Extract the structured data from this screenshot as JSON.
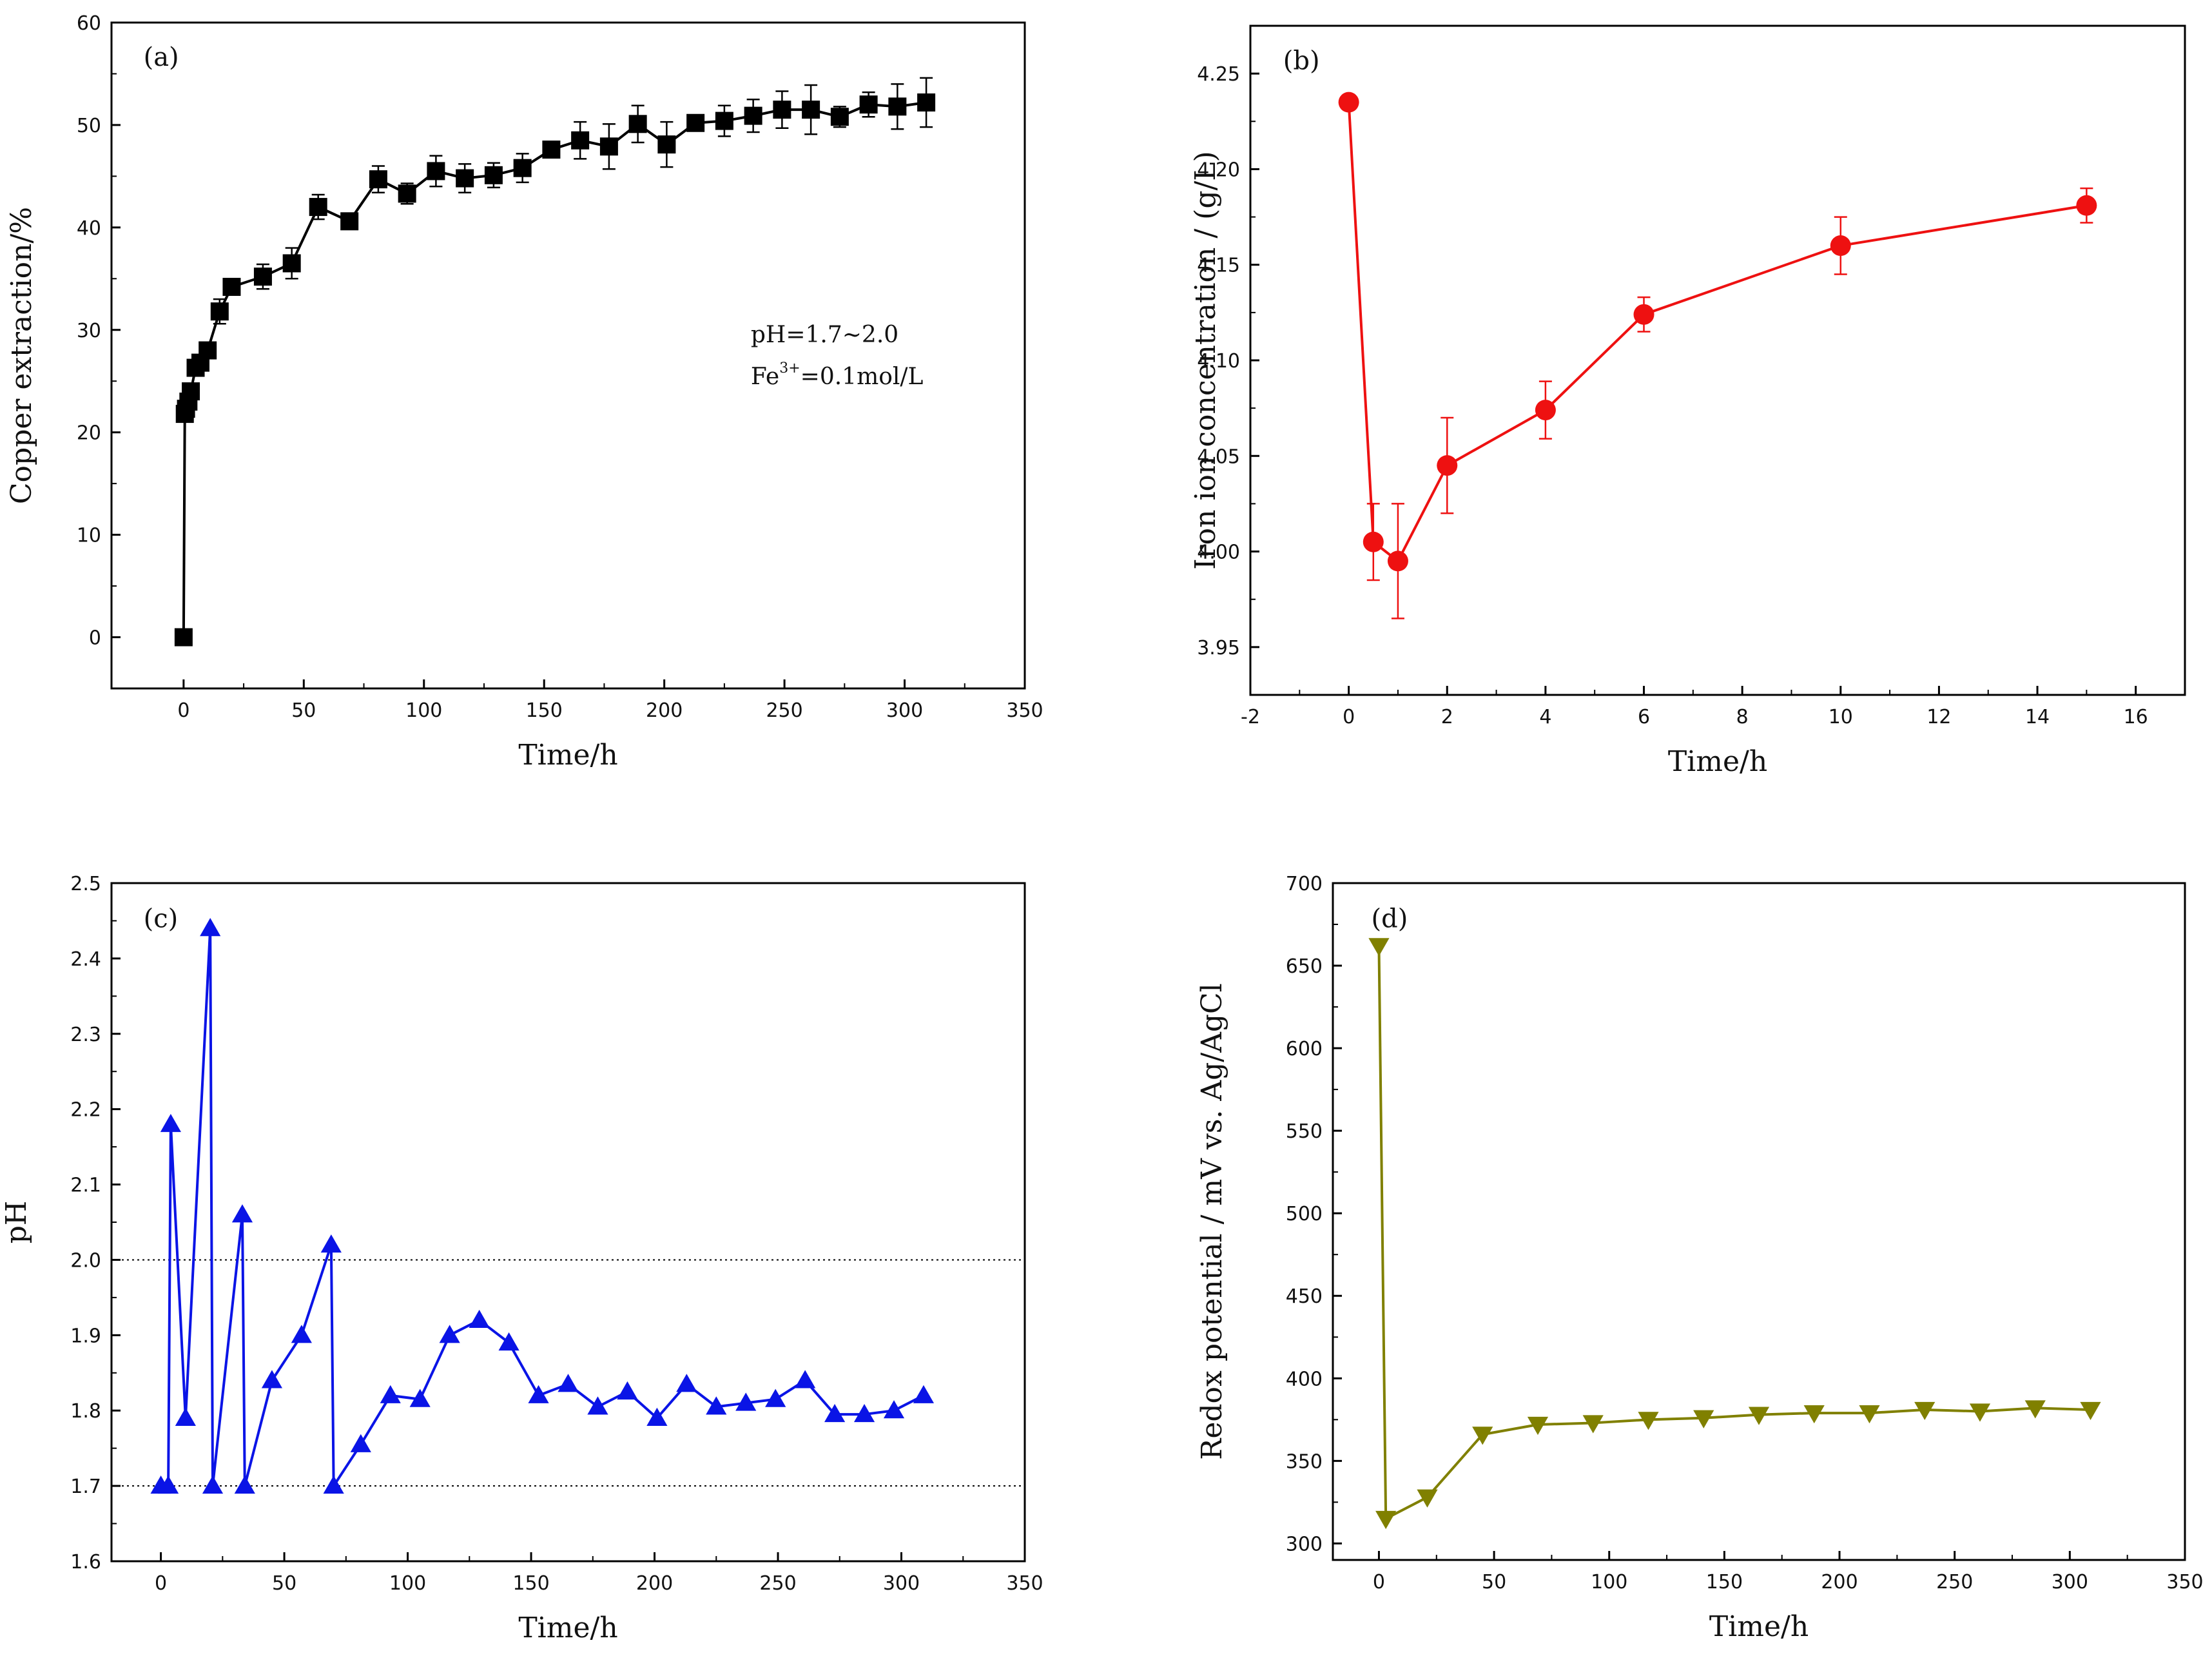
{
  "chart_data": [
    {
      "id": "a",
      "type": "line",
      "panel_label": "(a)",
      "xlabel": "Time/h",
      "ylabel": "Copper extraction/%",
      "xlim": [
        -30,
        350
      ],
      "ylim": [
        -5,
        60
      ],
      "xticks": [
        0,
        50,
        100,
        150,
        200,
        250,
        300,
        350
      ],
      "yticks": [
        0,
        10,
        20,
        30,
        40,
        50,
        60
      ],
      "marker": "square",
      "color": "#000000",
      "annotations": [
        {
          "text": "pH=1.7~2.0"
        },
        {
          "text": "Fe",
          "sup": "3+",
          "rest": "=0.1mol/L"
        }
      ],
      "series": [
        {
          "name": "Copper extraction",
          "x": [
            0,
            0.5,
            1,
            2,
            3,
            5,
            7,
            10,
            15,
            20,
            33,
            45,
            56,
            69,
            81,
            93,
            105,
            117,
            129,
            141,
            153,
            165,
            177,
            189,
            201,
            213,
            225,
            237,
            249,
            261,
            273,
            285,
            297,
            309
          ],
          "y": [
            0,
            21.8,
            22.3,
            23.0,
            24.0,
            26.3,
            26.8,
            28.0,
            31.8,
            34.2,
            35.2,
            36.5,
            42.0,
            40.6,
            44.7,
            43.3,
            45.5,
            44.8,
            45.1,
            45.8,
            47.6,
            48.5,
            47.9,
            50.1,
            48.1,
            50.2,
            50.4,
            50.9,
            51.5,
            51.5,
            50.8,
            52.0,
            51.8,
            52.2
          ],
          "err": [
            0,
            0,
            0,
            0,
            0,
            0.5,
            0.5,
            0.4,
            1.2,
            0.5,
            1.2,
            1.5,
            1.2,
            0,
            1.3,
            1.0,
            1.5,
            1.4,
            1.2,
            1.4,
            0,
            1.8,
            2.2,
            1.8,
            2.2,
            0,
            1.5,
            1.6,
            1.8,
            2.4,
            1.0,
            1.2,
            2.2,
            2.4
          ]
        }
      ]
    },
    {
      "id": "b",
      "type": "line",
      "panel_label": "(b)",
      "xlabel": "Time/h",
      "ylabel": "Iron ion concentration / (g/L)",
      "xlim": [
        -2,
        17
      ],
      "ylim": [
        3.925,
        4.275
      ],
      "xticks": [
        -2,
        0,
        2,
        4,
        6,
        8,
        10,
        12,
        14,
        16
      ],
      "yticks": [
        "3.95",
        "4.00",
        "4.05",
        "4.10",
        "4.15",
        "4.20",
        "4.25"
      ],
      "marker": "circle",
      "color": "#ee1111",
      "series": [
        {
          "name": "Iron ion concentration",
          "x": [
            0,
            0.5,
            1,
            2,
            4,
            6,
            10,
            15
          ],
          "y": [
            4.235,
            4.005,
            3.995,
            4.045,
            4.074,
            4.124,
            4.16,
            4.181
          ],
          "err": [
            0,
            0.02,
            0.03,
            0.025,
            0.015,
            0.009,
            0.015,
            0.009
          ]
        }
      ]
    },
    {
      "id": "c",
      "type": "line",
      "panel_label": "(c)",
      "xlabel": "Time/h",
      "ylabel": "pH",
      "xlim": [
        -20,
        350
      ],
      "ylim": [
        1.6,
        2.5
      ],
      "xticks": [
        0,
        50,
        100,
        150,
        200,
        250,
        300,
        350
      ],
      "yticks": [
        "1.6",
        "1.7",
        "1.8",
        "1.9",
        "2.0",
        "2.1",
        "2.2",
        "2.3",
        "2.4",
        "2.5"
      ],
      "reference_lines": [
        2.0,
        1.7
      ],
      "marker": "triangle-up",
      "color": "#0a14e6",
      "series": [
        {
          "name": "pH",
          "x": [
            0,
            3,
            4,
            10,
            20,
            21,
            33,
            34,
            45,
            57,
            69,
            70,
            81,
            93,
            105,
            117,
            129,
            141,
            153,
            165,
            177,
            189,
            201,
            213,
            225,
            237,
            249,
            261,
            273,
            285,
            297,
            309
          ],
          "y": [
            1.7,
            1.7,
            2.18,
            1.79,
            2.44,
            1.7,
            2.06,
            1.7,
            1.84,
            1.9,
            2.02,
            1.7,
            1.755,
            1.82,
            1.815,
            1.9,
            1.92,
            1.89,
            1.82,
            1.835,
            1.805,
            1.825,
            1.79,
            1.835,
            1.805,
            1.81,
            1.815,
            1.84,
            1.795,
            1.795,
            1.8,
            1.82
          ]
        }
      ]
    },
    {
      "id": "d",
      "type": "line",
      "panel_label": "(d)",
      "xlabel": "Time/h",
      "ylabel": "Redox potential / mV vs. Ag/AgCl",
      "xlim": [
        -20,
        350
      ],
      "ylim": [
        290,
        700
      ],
      "xticks": [
        0,
        50,
        100,
        150,
        200,
        250,
        300,
        350
      ],
      "yticks": [
        300,
        350,
        400,
        450,
        500,
        550,
        600,
        650,
        700
      ],
      "marker": "triangle-down",
      "color": "#808000",
      "series": [
        {
          "name": "Redox potential",
          "x": [
            0,
            3,
            21,
            45,
            69,
            93,
            117,
            141,
            165,
            189,
            213,
            237,
            261,
            285,
            309
          ],
          "y": [
            662,
            315,
            328,
            366,
            372,
            373,
            375,
            376,
            378,
            379,
            379,
            381,
            380,
            382,
            381
          ]
        }
      ]
    }
  ]
}
